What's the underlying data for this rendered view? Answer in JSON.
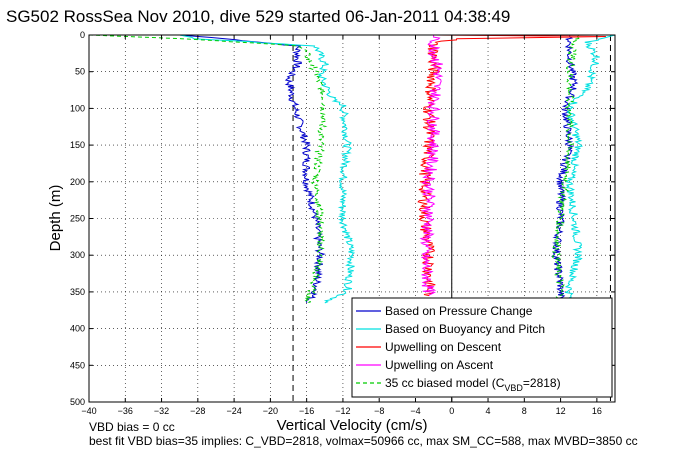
{
  "chart_data": {
    "type": "line",
    "title": "SG502 RossSea Nov 2010, dive 529 started 06-Jan-2011 04:38:49",
    "xlabel": "Vertical Velocity (cm/s)",
    "ylabel": "Depth (m)",
    "xlim": [
      -40,
      18
    ],
    "ylim": [
      500,
      0
    ],
    "y_reversed": true,
    "grid": true,
    "legend_position": "lower-right",
    "x_ticks": [
      -40,
      -36,
      -32,
      -28,
      -24,
      -20,
      -16,
      -12,
      -8,
      -4,
      0,
      4,
      8,
      12,
      16
    ],
    "y_ticks": [
      0,
      50,
      100,
      150,
      200,
      250,
      300,
      350,
      400,
      450,
      500
    ],
    "x_tick_labels": [
      "−40",
      "−36",
      "−32",
      "−28",
      "−24",
      "−20",
      "−16",
      "−12",
      "−8",
      "−4",
      "0",
      "4",
      "8",
      "12",
      "16"
    ],
    "y_tick_labels": [
      "0",
      "50",
      "100",
      "150",
      "200",
      "250",
      "300",
      "350",
      "400",
      "450",
      "500"
    ],
    "reference_lines": {
      "vertical_solid": [
        0
      ],
      "vertical_dashed": [
        -17.5,
        17.5
      ]
    },
    "legend": [
      {
        "label": "Based on Pressure Change",
        "color": "#0000cc"
      },
      {
        "label": "Based on Buoyancy and Pitch",
        "color": "#00e0e0"
      },
      {
        "label": "Upwelling on Descent",
        "color": "#ff0000"
      },
      {
        "label": "Upwelling on Ascent",
        "color": "#ff00ff"
      },
      {
        "label": "35 cc biased model (C",
        "sub": "VBD",
        "suffix": "=2818)",
        "color": "#00cc00",
        "dashed": true
      }
    ],
    "series": [
      {
        "color": "#0000cc",
        "profile": [
          [
            0,
            -30
          ],
          [
            5,
            -25
          ],
          [
            15,
            -17
          ],
          [
            40,
            -17
          ],
          [
            60,
            -18
          ],
          [
            90,
            -17.5
          ],
          [
            150,
            -16
          ],
          [
            200,
            -16
          ],
          [
            250,
            -15
          ],
          [
            300,
            -14.5
          ],
          [
            350,
            -15
          ],
          [
            365,
            -16
          ]
        ]
      },
      {
        "color": "#00e0e0",
        "profile": [
          [
            0,
            -30
          ],
          [
            5,
            -28
          ],
          [
            15,
            -15
          ],
          [
            40,
            -14
          ],
          [
            55,
            -14.5
          ],
          [
            90,
            -13
          ],
          [
            95,
            -12
          ],
          [
            150,
            -11.5
          ],
          [
            200,
            -12
          ],
          [
            250,
            -12
          ],
          [
            300,
            -11
          ],
          [
            350,
            -11.5
          ],
          [
            365,
            -14
          ]
        ]
      },
      {
        "color": "#00cc00",
        "dashed": true,
        "profile": [
          [
            0,
            -40
          ],
          [
            5,
            -30
          ],
          [
            15,
            -16.5
          ],
          [
            50,
            -15
          ],
          [
            90,
            -14
          ],
          [
            150,
            -14.5
          ],
          [
            200,
            -15
          ],
          [
            250,
            -14.5
          ],
          [
            300,
            -14.5
          ],
          [
            350,
            -15.5
          ],
          [
            365,
            -16
          ]
        ]
      },
      {
        "color": "#0000cc",
        "profile": [
          [
            0,
            13
          ],
          [
            10,
            13
          ],
          [
            30,
            13
          ],
          [
            70,
            13.5
          ],
          [
            100,
            12.5
          ],
          [
            150,
            13
          ],
          [
            200,
            12
          ],
          [
            250,
            12
          ],
          [
            300,
            11.5
          ],
          [
            340,
            12
          ],
          [
            360,
            12
          ]
        ]
      },
      {
        "color": "#00e0e0",
        "profile": [
          [
            0,
            18
          ],
          [
            10,
            15
          ],
          [
            30,
            16
          ],
          [
            70,
            15
          ],
          [
            100,
            13
          ],
          [
            150,
            14
          ],
          [
            200,
            13
          ],
          [
            250,
            13.5
          ],
          [
            300,
            14
          ],
          [
            340,
            13
          ],
          [
            360,
            13
          ]
        ]
      },
      {
        "color": "#00cc00",
        "dashed": true,
        "profile": [
          [
            0,
            14
          ],
          [
            10,
            13.5
          ],
          [
            50,
            13
          ],
          [
            100,
            13
          ],
          [
            150,
            13
          ],
          [
            200,
            12.5
          ],
          [
            250,
            12
          ],
          [
            300,
            11.5
          ],
          [
            340,
            12
          ],
          [
            360,
            12
          ]
        ]
      },
      {
        "color": "#ff0000",
        "profile": [
          [
            0,
            -2
          ],
          [
            2,
            17
          ],
          [
            5,
            1
          ],
          [
            10,
            -2
          ],
          [
            50,
            -2
          ],
          [
            100,
            -2.5
          ],
          [
            150,
            -2.5
          ],
          [
            200,
            -3
          ],
          [
            250,
            -3
          ],
          [
            300,
            -2.5
          ],
          [
            355,
            -2.5
          ]
        ]
      },
      {
        "color": "#ff00ff",
        "profile": [
          [
            0,
            -2
          ],
          [
            10,
            -2
          ],
          [
            50,
            -1.5
          ],
          [
            100,
            -2
          ],
          [
            150,
            -2
          ],
          [
            200,
            -2.5
          ],
          [
            250,
            -2.5
          ],
          [
            300,
            -3
          ],
          [
            355,
            -2.5
          ]
        ]
      }
    ]
  },
  "notes": {
    "line1": "VBD bias = 0 cc",
    "line2": "best fit VBD bias=35 implies: C_VBD=2818, volmax=50966 cc, max SM_CC=588, max MVBD=3850 cc"
  }
}
